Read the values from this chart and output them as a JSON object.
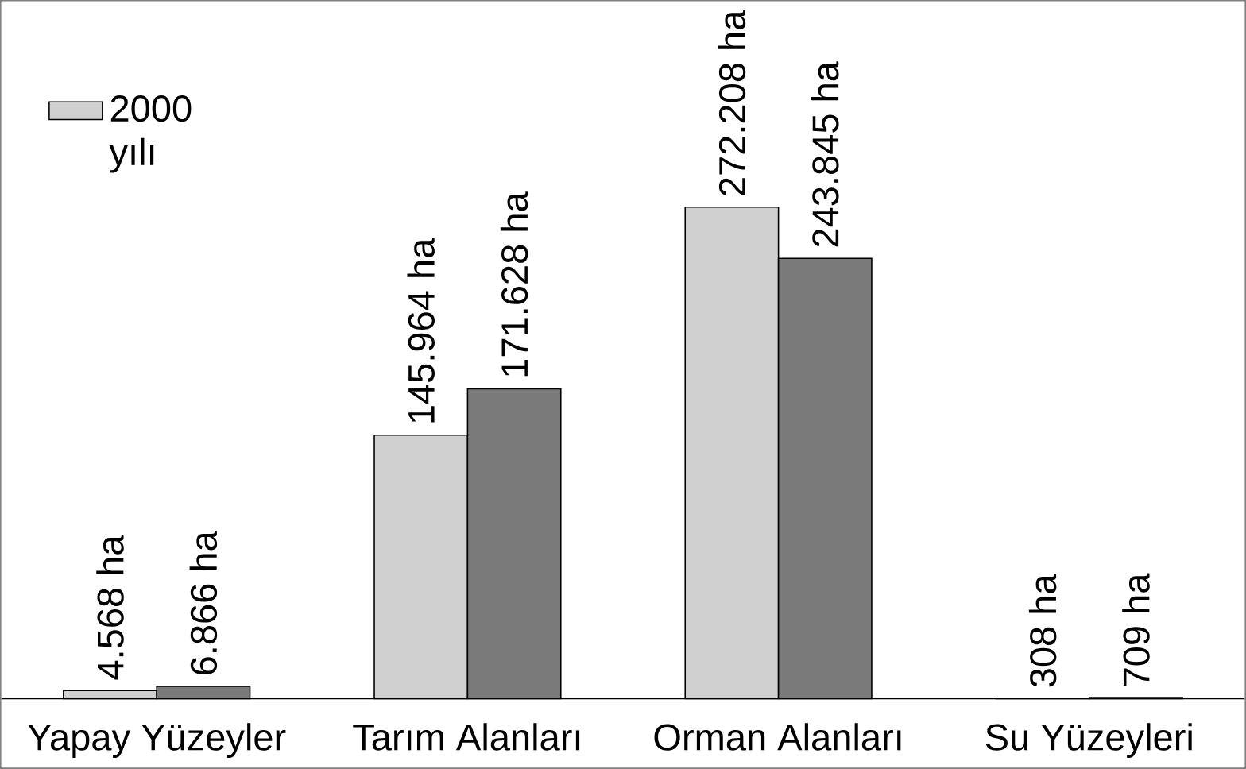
{
  "chart_data": {
    "type": "bar",
    "categories": [
      "Yapay Yüzeyler",
      "Tarım Alanları",
      "Orman Alanları",
      "Su Yüzeyleri"
    ],
    "series": [
      {
        "name": "2000 yılı",
        "color": "#d0d0d0",
        "values": [
          4568,
          145964,
          272208,
          308
        ],
        "value_labels": [
          "4.568 ha",
          "145.964 ha",
          "272.208 ha",
          "308 ha"
        ]
      },
      {
        "color": "#7a7a7a",
        "values": [
          6866,
          171628,
          243845,
          709
        ],
        "value_labels": [
          "6.866 ha",
          "171.628 ha",
          "243.845 ha",
          "709 ha"
        ]
      }
    ],
    "legend": "top left"
  }
}
